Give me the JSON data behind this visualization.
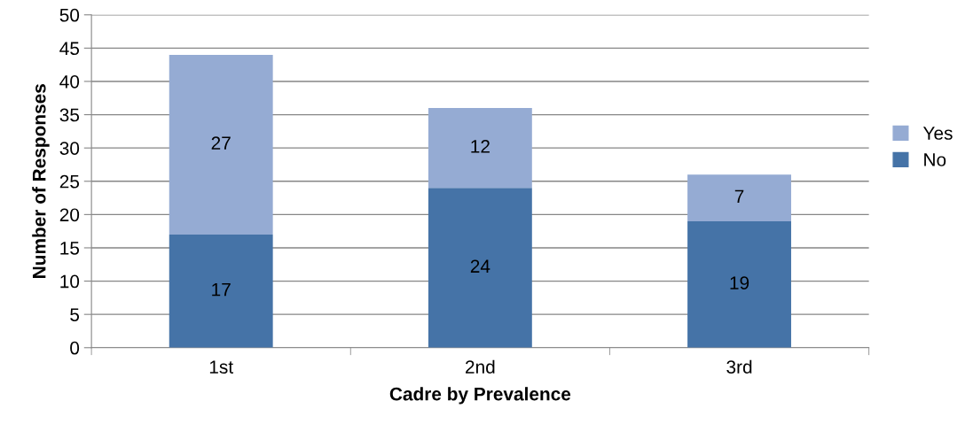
{
  "chart_data": {
    "type": "bar",
    "stacked": true,
    "xlabel": "Cadre by Prevalence",
    "ylabel": "Number of Responses",
    "categories": [
      "1st",
      "2nd",
      "3rd"
    ],
    "series": [
      {
        "name": "No",
        "color": "#4573a7",
        "values": [
          17,
          24,
          19
        ]
      },
      {
        "name": "Yes",
        "color": "#95abd3",
        "values": [
          27,
          12,
          7
        ]
      }
    ],
    "ylim": [
      0,
      50
    ],
    "yticks": [
      0,
      5,
      10,
      15,
      20,
      25,
      30,
      35,
      40,
      45,
      50
    ],
    "grid": "y",
    "legend": "right",
    "data_labels": true
  }
}
